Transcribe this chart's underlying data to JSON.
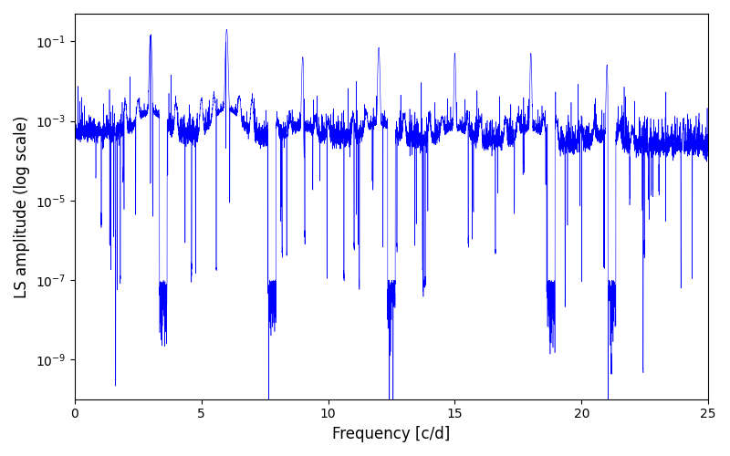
{
  "xlabel": "Frequency [c/d]",
  "ylabel": "LS amplitude (log scale)",
  "line_color": "#0000ff",
  "xlim": [
    0,
    25
  ],
  "ylim": [
    1e-10,
    0.5
  ],
  "freq_min": 0.0,
  "freq_max": 25.0,
  "n_points": 8000,
  "fundamental": 3.0,
  "seed": 17,
  "background_color": "#ffffff",
  "figsize": [
    8.0,
    5.0
  ],
  "dpi": 100,
  "yticks": [
    1e-09,
    1e-07,
    1e-05,
    0.001,
    0.1
  ]
}
